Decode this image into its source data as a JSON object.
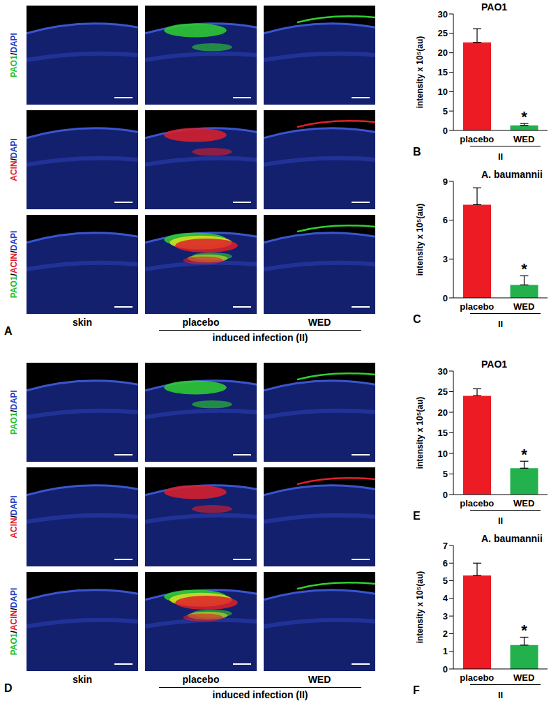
{
  "image_panels": [
    {
      "panel": "A",
      "rows": [
        [
          {
            "text": "PAO1",
            "color": "#22c02a"
          },
          {
            "text": "/",
            "color": "#000000"
          },
          {
            "text": "DAPI",
            "color": "#1f3fbf"
          }
        ],
        [
          {
            "text": "ACIN",
            "color": "#e0202a"
          },
          {
            "text": "/",
            "color": "#000000"
          },
          {
            "text": "DAPI",
            "color": "#1f3fbf"
          }
        ],
        [
          {
            "text": "PAO1",
            "color": "#22c02a"
          },
          {
            "text": "/",
            "color": "#000000"
          },
          {
            "text": "ACIN",
            "color": "#e0202a"
          },
          {
            "text": "/",
            "color": "#000000"
          },
          {
            "text": "DAPI",
            "color": "#1f3fbf"
          }
        ]
      ],
      "columns": [
        "skin",
        "placebo",
        "WED"
      ],
      "group_label": "induced infection (II)"
    },
    {
      "panel": "D",
      "rows": [
        [
          {
            "text": "PAO1",
            "color": "#22c02a"
          },
          {
            "text": "/",
            "color": "#000000"
          },
          {
            "text": "DAPI",
            "color": "#1f3fbf"
          }
        ],
        [
          {
            "text": "ACIN",
            "color": "#e0202a"
          },
          {
            "text": "/",
            "color": "#000000"
          },
          {
            "text": "DAPI",
            "color": "#1f3fbf"
          }
        ],
        [
          {
            "text": "PAO1",
            "color": "#22c02a"
          },
          {
            "text": "/",
            "color": "#000000"
          },
          {
            "text": "ACIN",
            "color": "#e0202a"
          },
          {
            "text": "/",
            "color": "#000000"
          },
          {
            "text": "DAPI",
            "color": "#1f3fbf"
          }
        ]
      ],
      "columns": [
        "skin",
        "placebo",
        "WED"
      ],
      "group_label": "induced infection (II)"
    }
  ],
  "chart_data": [
    {
      "type": "bar",
      "panel": "B",
      "title": "PAO1",
      "ylabel": "intensity x 10⁵(au)",
      "xlabel": "II",
      "categories": [
        "placebo",
        "WED"
      ],
      "values": [
        22.7,
        1.3
      ],
      "errors": [
        3.5,
        0.5
      ],
      "colors": [
        "#ed1c24",
        "#22b14c"
      ],
      "ylim": [
        0,
        30
      ],
      "yticks": [
        0,
        5,
        10,
        15,
        20,
        25,
        30
      ],
      "annotations": [
        {
          "category": "WED",
          "text": "*"
        }
      ]
    },
    {
      "type": "bar",
      "panel": "C",
      "title": "A. baumannii",
      "ylabel": "intensity x 10⁵(au)",
      "xlabel": "II",
      "categories": [
        "placebo",
        "WED"
      ],
      "values": [
        7.2,
        1.0
      ],
      "errors": [
        1.3,
        0.7
      ],
      "colors": [
        "#ed1c24",
        "#22b14c"
      ],
      "ylim": [
        0,
        9
      ],
      "yticks": [
        0,
        3,
        6,
        9
      ],
      "annotations": [
        {
          "category": "WED",
          "text": "*"
        }
      ]
    },
    {
      "type": "bar",
      "panel": "E",
      "title": "PAO1",
      "ylabel": "intensity x 10⁵(au)",
      "xlabel": "II",
      "categories": [
        "placebo",
        "WED"
      ],
      "values": [
        24.0,
        6.4
      ],
      "errors": [
        1.7,
        1.7
      ],
      "colors": [
        "#ed1c24",
        "#22b14c"
      ],
      "ylim": [
        0,
        30
      ],
      "yticks": [
        0,
        5,
        10,
        15,
        20,
        25,
        30
      ],
      "annotations": [
        {
          "category": "WED",
          "text": "*"
        }
      ]
    },
    {
      "type": "bar",
      "panel": "F",
      "title": "A. baumannii",
      "ylabel": "intensity x 10⁵(au)",
      "xlabel": "II",
      "categories": [
        "placebo",
        "WED"
      ],
      "values": [
        5.3,
        1.35
      ],
      "errors": [
        0.7,
        0.45
      ],
      "colors": [
        "#ed1c24",
        "#22b14c"
      ],
      "ylim": [
        0,
        7
      ],
      "yticks": [
        0,
        1,
        2,
        3,
        4,
        5,
        6,
        7
      ],
      "annotations": [
        {
          "category": "WED",
          "text": "*"
        }
      ]
    }
  ]
}
